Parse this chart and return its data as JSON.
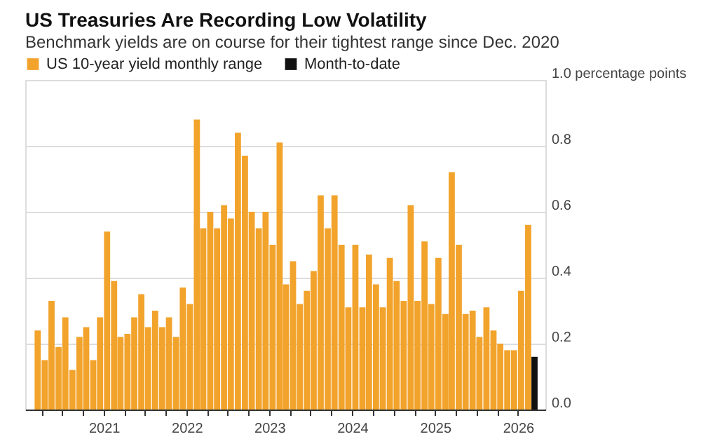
{
  "chart_data": {
    "type": "bar",
    "title": "US Treasuries Are Recording Low Volatility",
    "subtitle": "Benchmark yields are on course for their tightest range since Dec. 2020",
    "series": [
      {
        "name": "US 10-year yield monthly range",
        "color": "#f2a32c",
        "x": [
          "2020-03-15",
          "2020-04-15",
          "2020-05-15",
          "2020-06-15",
          "2020-07-15",
          "2020-08-15",
          "2020-09-15",
          "2020-10-15",
          "2020-11-15",
          "2020-12-15",
          "2021-01-15",
          "2021-02-15",
          "2021-03-15",
          "2021-04-15",
          "2021-05-15",
          "2021-06-15",
          "2021-07-15",
          "2021-08-15",
          "2021-09-15",
          "2021-10-15",
          "2021-11-15",
          "2021-12-15",
          "2022-01-15",
          "2022-02-15",
          "2022-03-15",
          "2022-04-15",
          "2022-05-15",
          "2022-06-15",
          "2022-07-15",
          "2022-08-15",
          "2022-09-15",
          "2022-10-15",
          "2022-11-15",
          "2022-12-15",
          "2023-01-15",
          "2023-02-15",
          "2023-03-15",
          "2023-04-15",
          "2023-05-15",
          "2023-06-15",
          "2023-07-15",
          "2023-08-15",
          "2023-09-15",
          "2023-10-15",
          "2023-11-15",
          "2023-12-15",
          "2024-01-15",
          "2024-02-15",
          "2024-03-15",
          "2024-04-15",
          "2024-05-15",
          "2024-06-15",
          "2024-07-15",
          "2024-08-15",
          "2024-09-15",
          "2024-10-15",
          "2024-11-15",
          "2024-12-15",
          "2025-01-15",
          "2025-02-15",
          "2025-03-15",
          "2025-04-15",
          "2025-05-15",
          "2025-06-15",
          "2025-07-15",
          "2025-08-15",
          "2025-09-15",
          "2025-10-15",
          "2025-11-15",
          "2025-12-15",
          "2026-01-15",
          "2026-02-15"
        ],
        "values": [
          0.24,
          0.15,
          0.33,
          0.19,
          0.28,
          0.12,
          0.22,
          0.25,
          0.15,
          0.28,
          0.54,
          0.39,
          0.22,
          0.23,
          0.28,
          0.35,
          0.25,
          0.3,
          0.25,
          0.28,
          0.22,
          0.37,
          0.32,
          0.88,
          0.55,
          0.6,
          0.55,
          0.62,
          0.58,
          0.84,
          0.77,
          0.6,
          0.55,
          0.6,
          0.5,
          0.81,
          0.38,
          0.45,
          0.32,
          0.36,
          0.42,
          0.65,
          0.55,
          0.65,
          0.5,
          0.31,
          0.5,
          0.31,
          0.47,
          0.38,
          0.31,
          0.46,
          0.39,
          0.33,
          0.62,
          0.33,
          0.51,
          0.32,
          0.46,
          0.29,
          0.72,
          0.5,
          0.29,
          0.3,
          0.22,
          0.31,
          0.24,
          0.2,
          0.18,
          0.18,
          0.36,
          0.56
        ]
      },
      {
        "name": "Month-to-date",
        "color": "#111111",
        "x": [
          "2026-03-15"
        ],
        "values": [
          0.16
        ]
      }
    ],
    "xlim": [
      "2020-02-20",
      "2026-04-01"
    ],
    "xticks": [
      {
        "value": "2020-04-01",
        "label": null
      },
      {
        "value": "2020-07-01",
        "label": null
      },
      {
        "value": "2020-10-01",
        "label": null
      },
      "2021",
      {
        "value": "2021-04-01",
        "label": null
      },
      {
        "value": "2021-07-01",
        "label": null
      },
      {
        "value": "2021-10-01",
        "label": null
      },
      "2022",
      {
        "value": "2022-04-01",
        "label": null
      },
      {
        "value": "2022-07-01",
        "label": null
      },
      {
        "value": "2022-10-01",
        "label": null
      },
      "2023",
      {
        "value": "2023-04-01",
        "label": null
      },
      {
        "value": "2023-07-01",
        "label": null
      },
      {
        "value": "2023-10-01",
        "label": null
      },
      "2024",
      {
        "value": "2024-04-01",
        "label": null
      },
      {
        "value": "2024-07-01",
        "label": null
      },
      {
        "value": "2024-10-01",
        "label": null
      },
      "2025",
      {
        "value": "2025-04-01",
        "label": null
      },
      {
        "value": "2025-07-01",
        "label": null
      },
      {
        "value": "2025-10-01",
        "label": null
      },
      "2026"
    ],
    "ylim": [
      0,
      1.0
    ],
    "yticks": [
      {
        "value": 0,
        "label": "0.0"
      },
      0.2,
      0.4,
      0.6,
      0.8,
      {
        "value": 1.0,
        "label": "1.0 percentage points"
      }
    ],
    "grid": "y",
    "legend": "top left"
  }
}
